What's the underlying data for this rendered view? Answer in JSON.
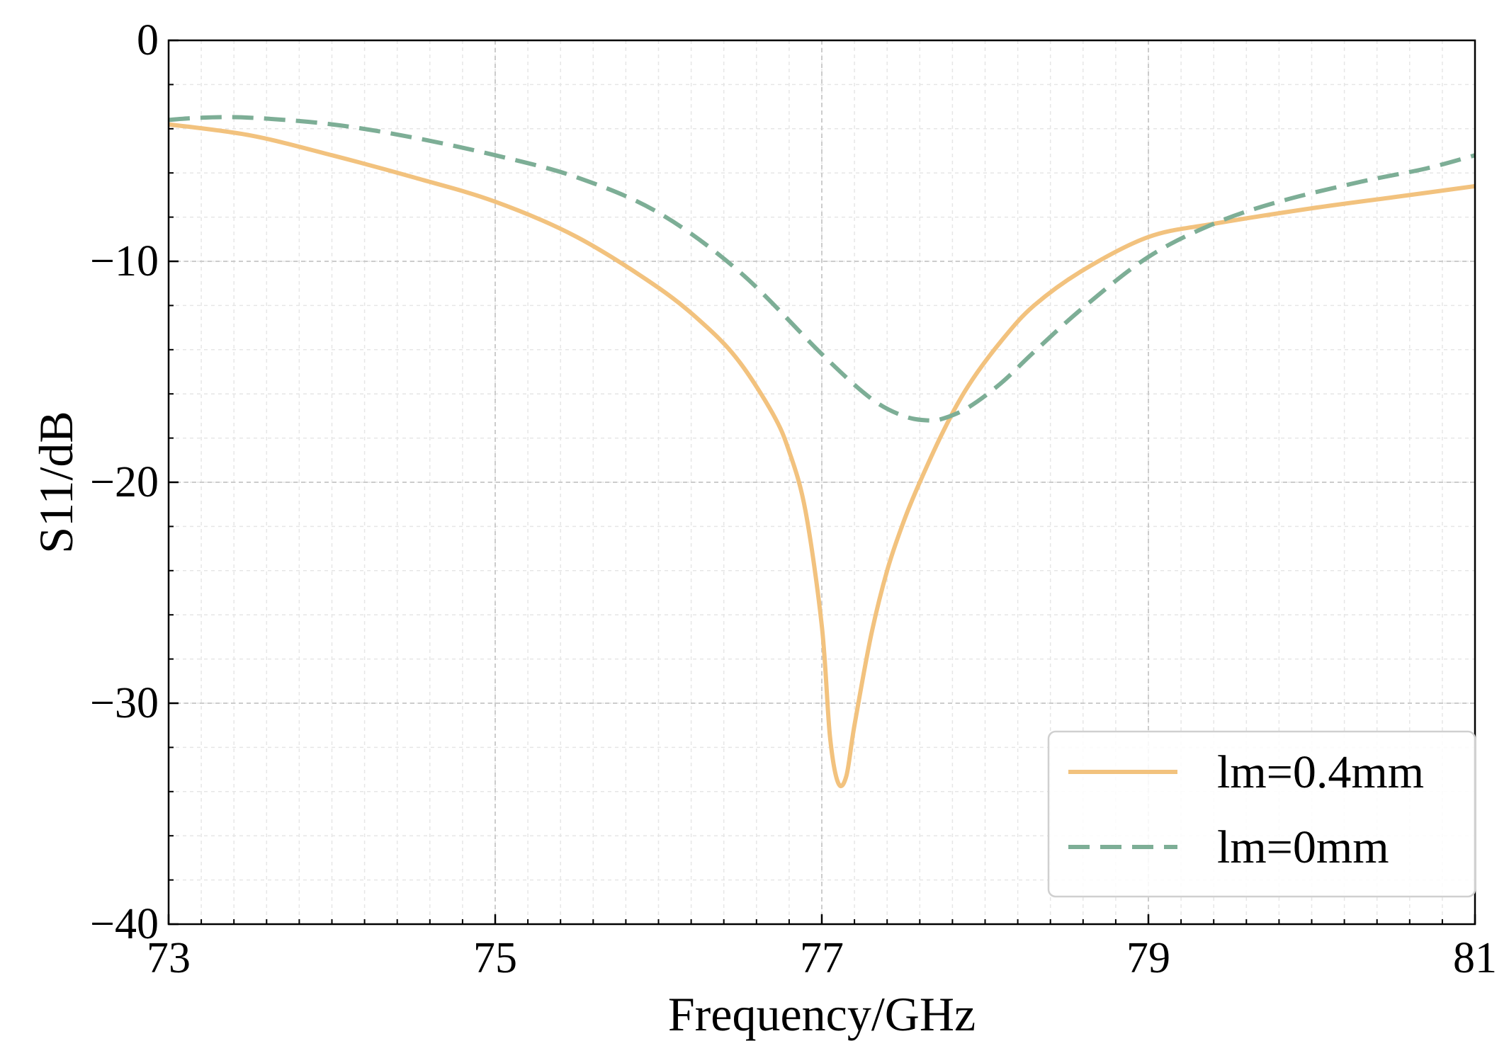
{
  "chart_data": {
    "type": "line",
    "title": "",
    "xlabel": "Frequency/GHz",
    "ylabel": "S11/dB",
    "xlim": [
      73,
      81
    ],
    "ylim": [
      -40,
      0
    ],
    "xticks": [
      73,
      75,
      77,
      79,
      81
    ],
    "xtick_labels": [
      "73",
      "75",
      "77",
      "79",
      "81"
    ],
    "yticks": [
      0,
      -10,
      -20,
      -30,
      -40
    ],
    "ytick_labels": [
      "0",
      "−10",
      "−20",
      "−30",
      "−40"
    ],
    "grid": true,
    "legend_position": "bottom-right",
    "series": [
      {
        "name": "lm=0.4mm",
        "color": "#F2C27E",
        "style": "solid",
        "x": [
          73.0,
          73.5,
          74.0,
          74.5,
          75.0,
          75.5,
          76.0,
          76.3,
          76.5,
          76.7,
          76.8,
          76.9,
          77.0,
          77.05,
          77.1,
          77.15,
          77.2,
          77.3,
          77.4,
          77.5,
          77.6,
          77.75,
          77.9,
          78.1,
          78.3,
          78.6,
          79.0,
          79.4,
          80.0,
          80.5,
          81.0
        ],
        "y": [
          -3.8,
          -4.3,
          -5.2,
          -6.2,
          -7.3,
          -8.9,
          -11.2,
          -13.0,
          -14.6,
          -16.9,
          -18.6,
          -21.3,
          -26.5,
          -31.5,
          -33.6,
          -33.3,
          -31.0,
          -27.0,
          -24.0,
          -21.8,
          -20.0,
          -17.6,
          -15.6,
          -13.6,
          -12.0,
          -10.4,
          -8.9,
          -8.3,
          -7.6,
          -7.1,
          -6.6
        ]
      },
      {
        "name": "lm=0mm",
        "color": "#7DAE96",
        "style": "dashed",
        "x": [
          73.0,
          73.2,
          73.5,
          74.0,
          74.5,
          75.0,
          75.5,
          76.0,
          76.5,
          77.0,
          77.3,
          77.5,
          77.65,
          77.75,
          77.9,
          78.1,
          78.3,
          78.6,
          79.0,
          79.4,
          79.8,
          80.3,
          80.7,
          81.0
        ],
        "y": [
          -3.6,
          -3.5,
          -3.5,
          -3.8,
          -4.4,
          -5.2,
          -6.2,
          -7.8,
          -10.5,
          -14.2,
          -16.2,
          -17.0,
          -17.2,
          -17.1,
          -16.6,
          -15.5,
          -14.1,
          -12.1,
          -9.8,
          -8.3,
          -7.3,
          -6.4,
          -5.8,
          -5.2
        ]
      }
    ]
  }
}
